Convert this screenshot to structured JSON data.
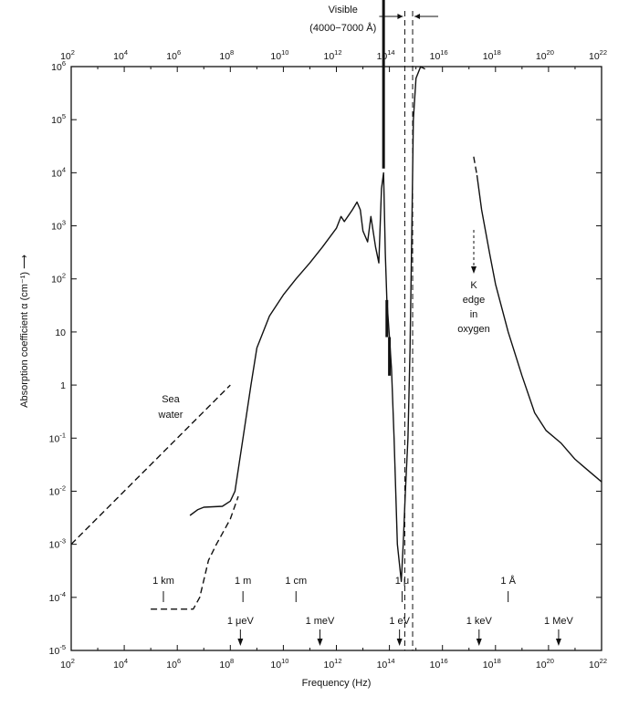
{
  "chart_data": {
    "type": "line",
    "xlabel": "Frequency (Hz)",
    "ylabel": "Absorption coefficient α (cm⁻¹) ⟶",
    "xscale": "log",
    "yscale": "log",
    "xlim": [
      100.0,
      1e+22
    ],
    "ylim": [
      1e-05,
      1000000.0
    ],
    "x_ticks": [
      {
        "base": "10",
        "exp": "2"
      },
      {
        "base": "10",
        "exp": "4"
      },
      {
        "base": "10",
        "exp": "6"
      },
      {
        "base": "10",
        "exp": "8"
      },
      {
        "base": "10",
        "exp": "10"
      },
      {
        "base": "10",
        "exp": "12"
      },
      {
        "base": "10",
        "exp": "14"
      },
      {
        "base": "10",
        "exp": "16"
      },
      {
        "base": "10",
        "exp": "18"
      },
      {
        "base": "10",
        "exp": "20"
      },
      {
        "base": "10",
        "exp": "22"
      }
    ],
    "y_ticks": [
      {
        "text": "10",
        "exp": "-5"
      },
      {
        "text": "10",
        "exp": "-4"
      },
      {
        "text": "10",
        "exp": "-3"
      },
      {
        "text": "10",
        "exp": "-2"
      },
      {
        "text": "10",
        "exp": "-1"
      },
      {
        "text": "1",
        "exp": ""
      },
      {
        "text": "10",
        "exp": ""
      },
      {
        "text": "10",
        "exp": "2"
      },
      {
        "text": "10",
        "exp": "3"
      },
      {
        "text": "10",
        "exp": "4"
      },
      {
        "text": "10",
        "exp": "5"
      },
      {
        "text": "10",
        "exp": "6"
      }
    ],
    "series": [
      {
        "style": "solid",
        "points": [
          [
            3000000.0,
            0.0035
          ],
          [
            6000000.0,
            0.0045
          ],
          [
            10000000.0,
            0.005
          ],
          [
            50000000.0,
            0.0052
          ],
          [
            100000000.0,
            0.0065
          ],
          [
            150000000.0,
            0.01
          ],
          [
            300000000.0,
            0.1
          ],
          [
            600000000.0,
            1
          ],
          [
            1000000000.0,
            5
          ],
          [
            3000000000.0,
            20
          ],
          [
            10000000000.0,
            50
          ],
          [
            30000000000.0,
            100
          ],
          [
            100000000000.0,
            200
          ],
          [
            300000000000.0,
            400
          ],
          [
            1000000000000.0,
            900
          ],
          [
            1500000000000.0,
            1500
          ],
          [
            2000000000000.0,
            1200
          ],
          [
            4000000000000.0,
            2000
          ],
          [
            6000000000000.0,
            2800
          ],
          [
            8000000000000.0,
            2000
          ],
          [
            10000000000000.0,
            800
          ],
          [
            15000000000000.0,
            500
          ],
          [
            20000000000000.0,
            1500
          ],
          [
            30000000000000.0,
            400
          ],
          [
            40000000000000.0,
            200
          ],
          [
            50000000000000.0,
            5000
          ],
          [
            60000000000000.0,
            10000.0
          ],
          [
            70000000000000.0,
            300
          ],
          [
            80000000000000.0,
            40
          ],
          [
            100000000000000.0,
            8
          ],
          [
            120000000000000.0,
            2
          ],
          [
            150000000000000.0,
            0.1
          ],
          [
            200000000000000.0,
            0.001
          ],
          [
            280000000000000.0,
            0.0002
          ],
          [
            330000000000000.0,
            0.001
          ],
          [
            400000000000000.0,
            0.01
          ],
          [
            500000000000000.0,
            0.1
          ],
          [
            600000000000000.0,
            5
          ],
          [
            700000000000000.0,
            1000.0
          ],
          [
            800000000000000.0,
            100000.0
          ],
          [
            1000000000000000.0,
            600000.0
          ],
          [
            1500000000000000.0,
            1000000.0
          ],
          [
            2200000000000000.0,
            900000.0
          ]
        ]
      },
      {
        "style": "solid",
        "points": [
          [
            2e+17,
            9000.0
          ],
          [
            3e+17,
            2000.0
          ],
          [
            6e+17,
            300
          ],
          [
            1e+18,
            80
          ],
          [
            3e+18,
            10
          ],
          [
            1e+19,
            1.5
          ],
          [
            3e+19,
            0.3
          ],
          [
            8e+19,
            0.14
          ],
          [
            3e+20,
            0.08
          ],
          [
            1e+21,
            0.04
          ],
          [
            3e+21,
            0.025
          ],
          [
            1e+22,
            0.015
          ]
        ]
      },
      {
        "style": "dashed",
        "points": [
          [
            1.5e+17,
            20000.0
          ],
          [
            2e+17,
            9000.0
          ]
        ]
      },
      {
        "style": "dashed",
        "points": [
          [
            100000.0,
            6e-05
          ],
          [
            1000000.0,
            6e-05
          ],
          [
            4000000.0,
            6e-05
          ],
          [
            7000000.0,
            0.0001
          ],
          [
            15000000.0,
            0.0005
          ],
          [
            30000000.0,
            0.001
          ],
          [
            100000000.0,
            0.003
          ],
          [
            200000000.0,
            0.008
          ]
        ]
      },
      {
        "name": "Sea water",
        "style": "dashed",
        "points": [
          [
            100.0,
            0.001
          ],
          [
            100000000.0,
            1
          ]
        ]
      }
    ],
    "visible_band": {
      "x": [
        380000000000000.0,
        750000000000000.0
      ]
    },
    "annotations": [
      {
        "id": "visible",
        "line1": "Visible",
        "line2": "(4000−7000 Å)"
      },
      {
        "id": "sea_water",
        "line1": "Sea",
        "line2": "water"
      },
      {
        "id": "k_edge",
        "lines": [
          "K",
          "edge",
          "in",
          "oxygen"
        ]
      }
    ],
    "wavelength_markers": [
      {
        "text": "1 km",
        "x": 300000.0
      },
      {
        "text": "1 m",
        "x": 300000000.0
      },
      {
        "text": "1 cm",
        "x": 30000000000.0
      },
      {
        "text": "1 μ",
        "x": 300000000000000.0
      },
      {
        "text": "1 Å",
        "x": 3e+18
      }
    ],
    "energy_markers": [
      {
        "text": "1 μeV",
        "x": 240000000.0
      },
      {
        "text": "1 meV",
        "x": 240000000000.0
      },
      {
        "text": "1 eV",
        "x": 240000000000000.0
      },
      {
        "text": "1 keV",
        "x": 2.4e+17
      },
      {
        "text": "1 MeV",
        "x": 2.4e+20
      }
    ]
  }
}
